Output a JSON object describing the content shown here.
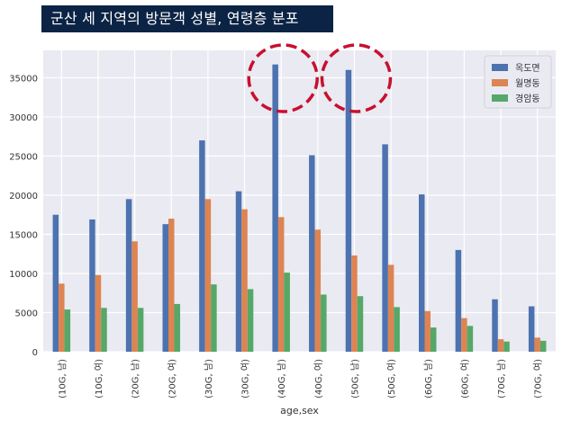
{
  "header": {
    "title": "군산 세 지역의 방문객 성별, 연령층 분포"
  },
  "colors": {
    "plot_bg": "#eaeaf2",
    "grid": "#ffffff",
    "highlight": "#c8102e"
  },
  "chart_data": {
    "type": "bar",
    "title": "군산 세 지역의 방문객 성별, 연령층 분포",
    "xlabel": "age,sex",
    "ylabel": "",
    "ylim": [
      0,
      38500
    ],
    "yticks": [
      0,
      5000,
      10000,
      15000,
      20000,
      25000,
      30000,
      35000
    ],
    "grid": true,
    "legend_position": "top-right",
    "categories": [
      "(10G, 남)",
      "(10G, 여)",
      "(20G, 남)",
      "(20G, 여)",
      "(30G, 남)",
      "(30G, 여)",
      "(40G, 남)",
      "(40G, 여)",
      "(50G, 남)",
      "(50G, 여)",
      "(60G, 남)",
      "(60G, 여)",
      "(70G, 남)",
      "(70G, 여)"
    ],
    "series": [
      {
        "name": "옥도면",
        "color": "#4c72b0",
        "values": [
          17500,
          16900,
          19500,
          16300,
          27000,
          20500,
          36700,
          25100,
          36000,
          26500,
          20100,
          13000,
          6700,
          5800
        ]
      },
      {
        "name": "월명동",
        "color": "#dd8452",
        "values": [
          8700,
          9800,
          14100,
          17000,
          19500,
          18200,
          17200,
          15600,
          12300,
          11100,
          5200,
          4300,
          1600,
          1800
        ]
      },
      {
        "name": "경암동",
        "color": "#55a868",
        "values": [
          5400,
          5600,
          5600,
          6100,
          8600,
          8000,
          10100,
          7300,
          7100,
          5700,
          3100,
          3300,
          1300,
          1400
        ]
      }
    ],
    "highlighted_categories": [
      "(40G, 남)",
      "(50G, 남)"
    ]
  }
}
